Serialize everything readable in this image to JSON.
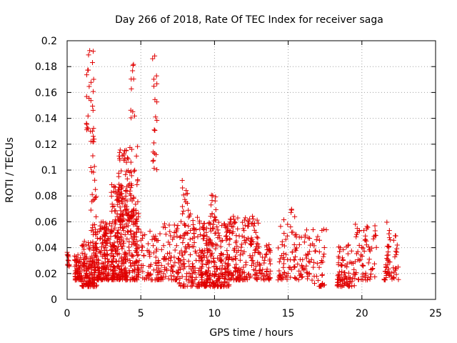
{
  "chart_data": {
    "type": "scatter",
    "title": "Day 266 of 2018, Rate Of TEC Index for receiver saga",
    "xlabel": "GPS time / hours",
    "ylabel": "ROTI / TECUs",
    "xlim": [
      0,
      25
    ],
    "ylim": [
      0,
      0.2
    ],
    "xticks": [
      0,
      5,
      10,
      15,
      20,
      25
    ],
    "yticks": [
      0,
      0.02,
      0.04,
      0.06,
      0.08,
      0.1,
      0.12,
      0.14,
      0.16,
      0.18,
      0.2
    ],
    "xtick_labels": [
      "0",
      "5",
      "10",
      "15",
      "20",
      "25"
    ],
    "ytick_labels": [
      "0",
      "0.02",
      "0.04",
      "0.06",
      "0.08",
      "0.1",
      "0.12",
      "0.14",
      "0.16",
      "0.18",
      "0.2"
    ],
    "grid": true,
    "marker": "+",
    "marker_color": "#e00000",
    "series": [
      {
        "name": "ROTI",
        "clusters": [
          {
            "x_range": [
              0.0,
              0.2
            ],
            "y_range": [
              0.025,
              0.038
            ],
            "count": 12
          },
          {
            "x_range": [
              0.5,
              1.0
            ],
            "y_range": [
              0.015,
              0.035
            ],
            "count": 60
          },
          {
            "x_range": [
              1.0,
              2.0
            ],
            "y_range": [
              0.01,
              0.045
            ],
            "count": 150
          },
          {
            "x_range": [
              1.3,
              1.8
            ],
            "y_range": [
              0.13,
              0.195
            ],
            "count": 25
          },
          {
            "x_range": [
              1.6,
              2.0
            ],
            "y_range": [
              0.05,
              0.13
            ],
            "count": 30
          },
          {
            "x_range": [
              2.0,
              3.0
            ],
            "y_range": [
              0.015,
              0.06
            ],
            "count": 140
          },
          {
            "x_range": [
              3.0,
              4.0
            ],
            "y_range": [
              0.015,
              0.09
            ],
            "count": 200
          },
          {
            "x_range": [
              3.5,
              4.8
            ],
            "y_range": [
              0.06,
              0.12
            ],
            "count": 90
          },
          {
            "x_range": [
              4.0,
              4.9
            ],
            "y_range": [
              0.015,
              0.07
            ],
            "count": 120
          },
          {
            "x_range": [
              4.3,
              4.6
            ],
            "y_range": [
              0.14,
              0.186
            ],
            "count": 10
          },
          {
            "x_range": [
              5.0,
              6.5
            ],
            "y_range": [
              0.015,
              0.055
            ],
            "count": 80
          },
          {
            "x_range": [
              5.8,
              6.1
            ],
            "y_range": [
              0.1,
              0.19
            ],
            "count": 20
          },
          {
            "x_range": [
              6.5,
              7.5
            ],
            "y_range": [
              0.015,
              0.06
            ],
            "count": 60
          },
          {
            "x_range": [
              7.5,
              9.0
            ],
            "y_range": [
              0.01,
              0.07
            ],
            "count": 130
          },
          {
            "x_range": [
              7.8,
              8.2
            ],
            "y_range": [
              0.07,
              0.096
            ],
            "count": 10
          },
          {
            "x_range": [
              9.0,
              11.0
            ],
            "y_range": [
              0.01,
              0.06
            ],
            "count": 260
          },
          {
            "x_range": [
              9.6,
              10.1
            ],
            "y_range": [
              0.06,
              0.083
            ],
            "count": 15
          },
          {
            "x_range": [
              11.0,
              13.0
            ],
            "y_range": [
              0.015,
              0.065
            ],
            "count": 170
          },
          {
            "x_range": [
              13.0,
              13.8
            ],
            "y_range": [
              0.015,
              0.045
            ],
            "count": 50
          },
          {
            "x_range": [
              14.3,
              15.5
            ],
            "y_range": [
              0.015,
              0.065
            ],
            "count": 60
          },
          {
            "x_range": [
              15.1,
              15.3
            ],
            "y_range": [
              0.065,
              0.077
            ],
            "count": 3
          },
          {
            "x_range": [
              15.5,
              16.5
            ],
            "y_range": [
              0.015,
              0.055
            ],
            "count": 45
          },
          {
            "x_range": [
              16.5,
              17.6
            ],
            "y_range": [
              0.01,
              0.055
            ],
            "count": 40
          },
          {
            "x_range": [
              18.3,
              19.5
            ],
            "y_range": [
              0.01,
              0.045
            ],
            "count": 80
          },
          {
            "x_range": [
              19.5,
              21.0
            ],
            "y_range": [
              0.015,
              0.06
            ],
            "count": 70
          },
          {
            "x_range": [
              21.5,
              22.5
            ],
            "y_range": [
              0.015,
              0.06
            ],
            "count": 60
          }
        ]
      }
    ]
  }
}
